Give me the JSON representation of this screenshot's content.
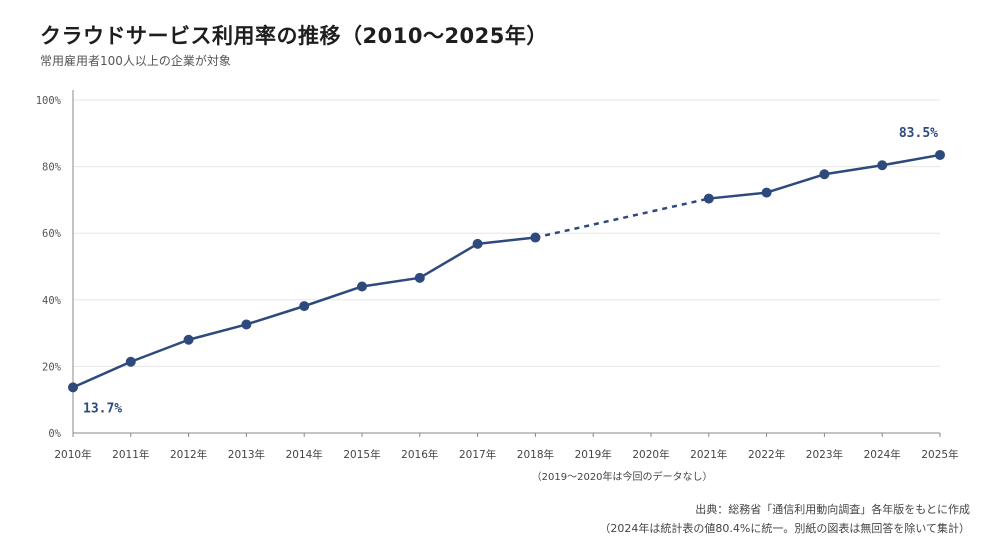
{
  "title": "クラウドサービス利用率の推移（2010〜2025年）",
  "subtitle": "常用雇用者100人以上の企業が対象",
  "gap_note": "（2019〜2020年は今回のデータなし）",
  "source_line1": "出典：総務省「通信利用動向調査」各年版をもとに作成",
  "source_line2": "（2024年は統計表の値80.4%に統一。別紙の図表は無回答を除いて集計）",
  "colors": {
    "line": "#2e4a7d",
    "grid": "#e6e6e6",
    "axis": "#888888"
  },
  "chart_data": {
    "type": "line",
    "categories": [
      "2010年",
      "2011年",
      "2012年",
      "2013年",
      "2014年",
      "2015年",
      "2016年",
      "2017年",
      "2018年",
      "2019年",
      "2020年",
      "2021年",
      "2022年",
      "2023年",
      "2024年",
      "2025年"
    ],
    "yticks": [
      "0%",
      "20%",
      "40%",
      "60%",
      "80%",
      "100%"
    ],
    "ylim": [
      0,
      100
    ],
    "grid": true,
    "series": [
      {
        "values": [
          13.7,
          21.4,
          28.0,
          32.6,
          38.1,
          44.0,
          46.6,
          56.8,
          58.7,
          null,
          null,
          70.4,
          72.2,
          77.7,
          80.4,
          83.5
        ]
      }
    ],
    "dashed_segment": [
      "2018年",
      "2021年"
    ],
    "annotations": [
      {
        "category": "2010年",
        "label": "13.7%"
      },
      {
        "category": "2025年",
        "label": "83.5%"
      }
    ]
  }
}
